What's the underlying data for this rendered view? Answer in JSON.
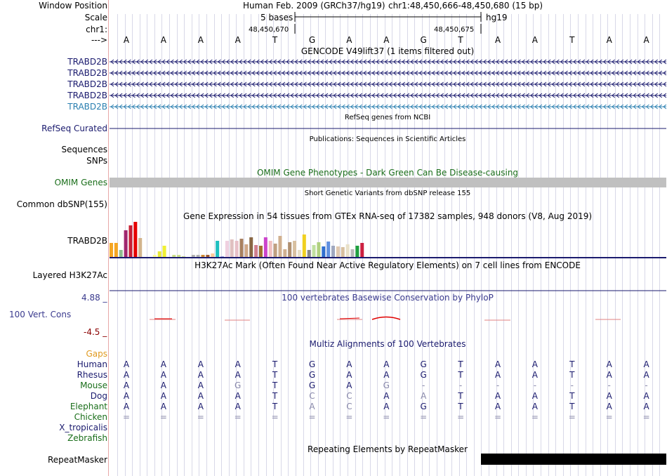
{
  "header": {
    "window_position_label": "Window Position",
    "scale_label": "Scale",
    "chrom_label": "chr1:",
    "arrow_label": "--->",
    "assembly": "Human Feb. 2009 (GRCh37/hg19)",
    "position": "chr1:48,450,666-48,450,680 (15 bp)",
    "scale_text": "5 bases",
    "db": "hg19",
    "coord_left": "48,450,670",
    "coord_right": "48,450,675"
  },
  "sequence": [
    "A",
    "A",
    "A",
    "A",
    "T",
    "G",
    "A",
    "A",
    "G",
    "T",
    "A",
    "A",
    "T",
    "A",
    "A"
  ],
  "gencode": {
    "title": "GENCODE V49lift37 (1 items filtered out)",
    "genes": [
      {
        "label": "TRABD2B",
        "color": "#1a1a6e"
      },
      {
        "label": "TRABD2B",
        "color": "#1a1a6e"
      },
      {
        "label": "TRABD2B",
        "color": "#1a1a6e"
      },
      {
        "label": "TRABD2B",
        "color": "#1a1a6e"
      },
      {
        "label": "TRABD2B",
        "color": "#2a7fb0"
      }
    ]
  },
  "refseq": {
    "title": "RefSeq genes from NCBI",
    "label": "RefSeq Curated"
  },
  "pubs": {
    "title": "Publications: Sequences in Scientific Articles",
    "label1": "Sequences",
    "label2": "SNPs"
  },
  "omim": {
    "title": "OMIM Gene Phenotypes - Dark Green Can Be Disease-causing",
    "label": "OMIM Genes"
  },
  "dbsnp": {
    "title": "Short Genetic Variants from dbSNP release 155",
    "label": "Common dbSNP(155)"
  },
  "gtex": {
    "title": "Gene Expression in 54 tissues from GTEx RNA-seq of 17382 samples, 948 donors (V8, Aug 2019)",
    "label": "TRABD2B",
    "values": [
      20,
      20,
      10,
      38,
      45,
      50,
      27,
      0,
      0,
      3,
      8,
      16,
      0,
      3,
      3,
      1,
      0,
      3,
      3,
      3,
      3,
      5,
      23,
      1,
      23,
      25,
      23,
      26,
      18,
      28,
      17,
      16,
      28,
      23,
      19,
      30,
      11,
      21,
      23,
      10,
      32,
      10,
      17,
      21,
      15,
      22,
      16,
      15,
      14,
      18,
      11,
      16,
      20,
      0
    ],
    "colors": [
      "#f5a623",
      "#f5a623",
      "#8fbc8f",
      "#a0266e",
      "#c81f35",
      "#e60000",
      "#d2b48c",
      "#cccccc",
      "#cccccc",
      "#ffff99",
      "#e8e835",
      "#f0f033",
      "#cccccc",
      "#cce08a",
      "#cce08a",
      "#cce08a",
      "#cccccc",
      "#b0b0b0",
      "#b0b0b0",
      "#cc8833",
      "#a05a2c",
      "#ffcc99",
      "#20c0c0",
      "#a0a0e0",
      "#f0d0e0",
      "#e0c0c0",
      "#e8c0c8",
      "#a88060",
      "#d0a888",
      "#886644",
      "#d08090",
      "#a07030",
      "#cc44cc",
      "#f0c0c0",
      "#c0a080",
      "#d0b090",
      "#d0b090",
      "#b09070",
      "#d8c0a0",
      "#e8e0c8",
      "#f0d020",
      "#888888",
      "#c0e0a0",
      "#b0d080",
      "#3070d0",
      "#6090e0",
      "#a0a8c0",
      "#e0c8b0",
      "#d8c0a0",
      "#e8e0c8",
      "#b8b8b8",
      "#20a040",
      "#cc2040",
      "#cccccc"
    ]
  },
  "h3k27ac": {
    "title": "H3K27Ac Mark (Often Found Near Active Regulatory Elements) on 7 cell lines from ENCODE",
    "label": "Layered H3K27Ac"
  },
  "phylop": {
    "title": "100 vertebrates Basewise Conservation by PhyloP",
    "label": "100 Vert. Cons",
    "max": "4.88 _",
    "min": "-4.5 _"
  },
  "multiz": {
    "title": "Multiz Alignments of 100 Vertebrates",
    "gaps_label": "Gaps",
    "species": [
      {
        "name": "Human",
        "color": "#1a1a6e",
        "seq": [
          "A",
          "A",
          "A",
          "A",
          "T",
          "G",
          "A",
          "A",
          "G",
          "T",
          "A",
          "A",
          "T",
          "A",
          "A"
        ],
        "dim": []
      },
      {
        "name": "Rhesus",
        "color": "#1a1a6e",
        "seq": [
          "A",
          "A",
          "A",
          "A",
          "T",
          "G",
          "A",
          "A",
          "G",
          "T",
          "A",
          "A",
          "T",
          "A",
          "A"
        ],
        "dim": []
      },
      {
        "name": "Mouse",
        "color": "#1a6e1a",
        "seq": [
          "A",
          "A",
          "A",
          "G",
          "T",
          "G",
          "A",
          "G",
          "-",
          "-",
          "-",
          "-",
          "-",
          "-",
          "-"
        ],
        "dim": [
          3,
          7,
          8,
          9,
          10,
          11,
          12,
          13,
          14
        ]
      },
      {
        "name": "Dog",
        "color": "#1a1a6e",
        "seq": [
          "A",
          "A",
          "A",
          "A",
          "T",
          "C",
          "C",
          "A",
          "A",
          "T",
          "A",
          "A",
          "T",
          "A",
          "A"
        ],
        "dim": [
          5,
          6,
          8
        ]
      },
      {
        "name": "Elephant",
        "color": "#1a6e1a",
        "seq": [
          "A",
          "A",
          "A",
          "A",
          "T",
          "A",
          "C",
          "A",
          "G",
          "T",
          "A",
          "A",
          "T",
          "A",
          "A"
        ],
        "dim": [
          5,
          6
        ]
      },
      {
        "name": "Chicken",
        "color": "#1a6e1a",
        "seq": [
          "=",
          "=",
          "=",
          "=",
          "=",
          "=",
          "=",
          "=",
          "=",
          "=",
          "=",
          "=",
          "=",
          "=",
          "="
        ],
        "dim": [
          0,
          1,
          2,
          3,
          4,
          5,
          6,
          7,
          8,
          9,
          10,
          11,
          12,
          13,
          14
        ]
      },
      {
        "name": "X_tropicalis",
        "color": "#1a1a6e",
        "seq": [],
        "dim": []
      },
      {
        "name": "Zebrafish",
        "color": "#1a6e1a",
        "seq": [],
        "dim": []
      }
    ]
  },
  "repeatmasker": {
    "title": "Repeating Elements by RepeatMasker",
    "label": "RepeatMasker"
  },
  "colors": {
    "navy": "#1a1a6e",
    "green": "#1a6e1a",
    "gaps": "#e09a20",
    "phylop_min": "#8b0000",
    "phylop_red": "#e00000"
  }
}
